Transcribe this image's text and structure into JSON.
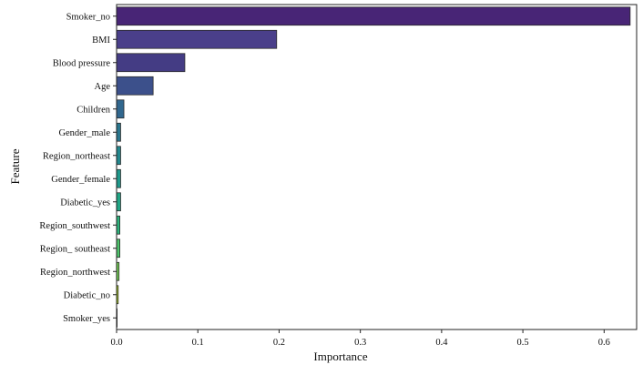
{
  "chart_data": {
    "type": "bar",
    "orientation": "horizontal",
    "xlabel": "Importance",
    "ylabel": "Feature",
    "xlim": [
      0,
      0.64
    ],
    "xticks": [
      0.0,
      0.1,
      0.2,
      0.3,
      0.4,
      0.5,
      0.6
    ],
    "xtick_labels": [
      "0.0",
      "0.1",
      "0.2",
      "0.3",
      "0.4",
      "0.5",
      "0.6"
    ],
    "grid": false,
    "legend": "none",
    "categories": [
      "Smoker_no",
      "BMI",
      "Blood pressure",
      "Age",
      "Children",
      "Gender_male",
      "Region_northeast",
      "Gender_female",
      "Diabetic_yes",
      "Region_southwest",
      "Region_ southeast",
      "Region_northwest",
      "Diabetic_no",
      "Smoker_yes"
    ],
    "values": [
      0.632,
      0.197,
      0.084,
      0.045,
      0.009,
      0.005,
      0.005,
      0.005,
      0.005,
      0.004,
      0.004,
      0.003,
      0.002,
      0.0
    ],
    "colors": [
      "#482576",
      "#4a3f8a",
      "#443c84",
      "#3c508b",
      "#31678e",
      "#2a768e",
      "#23888e",
      "#1f988b",
      "#21a585",
      "#2eb37c",
      "#4dc36b",
      "#74d055",
      "#b8de29",
      "#fde725"
    ]
  }
}
